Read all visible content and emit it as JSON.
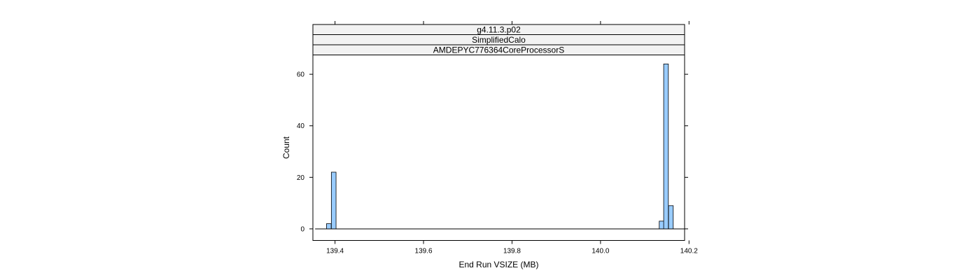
{
  "chart_data": {
    "type": "bar",
    "strips": [
      "g4.11.3.p02",
      "SimplifiedCalo",
      "AMDEPYC776364CoreProcessorS"
    ],
    "xlabel": "End Run VSIZE (MB)",
    "ylabel": "Count",
    "xlim": [
      139.35,
      140.19
    ],
    "ylim": [
      -4.5,
      67.5
    ],
    "xticks": [
      139.4,
      139.6,
      139.8,
      140.0,
      140.2
    ],
    "xtick_labels": [
      "139.4",
      "139.6",
      "139.8",
      "140.0",
      "140.2"
    ],
    "yticks": [
      0,
      20,
      40,
      60
    ],
    "ytick_labels": [
      "0",
      "20",
      "40",
      "60"
    ],
    "baseline_range": [
      139.355,
      140.19
    ],
    "bin_width": 0.0106,
    "bars": [
      {
        "x": 139.386,
        "count": 2
      },
      {
        "x": 139.397,
        "count": 22
      },
      {
        "x": 140.138,
        "count": 3
      },
      {
        "x": 140.148,
        "count": 64
      },
      {
        "x": 140.159,
        "count": 9
      }
    ],
    "bar_color": "#99ccff"
  }
}
